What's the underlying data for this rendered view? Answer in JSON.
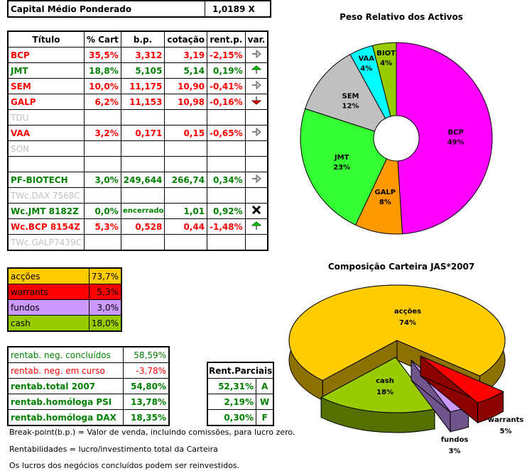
{
  "header": {
    "label": "Capital Médio Ponderado",
    "value": "1,0189 X"
  },
  "portfolio": {
    "columns": [
      "Título",
      "% Cart",
      "b.p.",
      "cotação",
      "rent.p.",
      "var."
    ],
    "rows": [
      {
        "titulo": "BCP",
        "cart": "35,5%",
        "bp": "3,312",
        "cot": "3,19",
        "rent": "-2,15%",
        "var": "arrow-right",
        "color": "red"
      },
      {
        "titulo": "JMT",
        "cart": "18,8%",
        "bp": "5,105",
        "cot": "5,14",
        "rent": "0,19%",
        "var": "arrow-up",
        "color": "green"
      },
      {
        "titulo": "SEM",
        "cart": "10,0%",
        "bp": "11,175",
        "cot": "10,90",
        "rent": "-0,41%",
        "var": "arrow-right",
        "color": "red"
      },
      {
        "titulo": "GALP",
        "cart": "6,2%",
        "bp": "11,153",
        "cot": "10,98",
        "rent": "-0,16%",
        "var": "arrow-down",
        "color": "red"
      },
      {
        "titulo": "TDU",
        "cart": "",
        "bp": "",
        "cot": "",
        "rent": "",
        "var": "",
        "color": "grey"
      },
      {
        "titulo": "VAA",
        "cart": "3,2%",
        "bp": "0,171",
        "cot": "0,15",
        "rent": "-0,65%",
        "var": "arrow-right",
        "color": "red"
      },
      {
        "titulo": "SON",
        "cart": "",
        "bp": "",
        "cot": "",
        "rent": "",
        "var": "",
        "color": "grey"
      },
      {
        "titulo": "",
        "cart": "",
        "bp": "",
        "cot": "",
        "rent": "",
        "var": "",
        "color": "grey"
      },
      {
        "titulo": "PF-BIOTECH",
        "cart": "3,0%",
        "bp": "249,644",
        "cot": "266,74",
        "rent": "0,34%",
        "var": "arrow-right",
        "color": "green"
      },
      {
        "titulo": "TWc.DAX 7568C",
        "cart": "",
        "bp": "",
        "cot": "",
        "rent": "",
        "var": "",
        "color": "grey"
      },
      {
        "titulo": "Wc.JMT 8182Z",
        "cart": "0,0%",
        "bp": "encerrado",
        "cot": "1,01",
        "rent": "0,92%",
        "var": "cross",
        "color": "green"
      },
      {
        "titulo": "Wc.BCP 8154Z",
        "cart": "5,3%",
        "bp": "0,528",
        "cot": "0,44",
        "rent": "-1,48%",
        "var": "arrow-up",
        "color": "red"
      },
      {
        "titulo": "TWc.GALP7439C",
        "cart": "",
        "bp": "",
        "cot": "",
        "rent": "",
        "var": "",
        "color": "grey"
      }
    ]
  },
  "allocation": [
    {
      "label": "acções",
      "value": "73,7%",
      "color": "#ffcc00"
    },
    {
      "label": "warrants",
      "value": "5,3%",
      "color": "#ff0000"
    },
    {
      "label": "fundos",
      "value": "3,0%",
      "color": "#cc99ff"
    },
    {
      "label": "cash",
      "value": "18,0%",
      "color": "#99cc00"
    }
  ],
  "rentab": [
    {
      "label": "rentab. neg. concluídos",
      "value": "58,59%",
      "color": "green",
      "bold": false
    },
    {
      "label": "rentab. neg. em curso",
      "value": "-3,78%",
      "color": "red",
      "bold": false
    },
    {
      "label": "rentab.total 2007",
      "value": "54,80%",
      "color": "green",
      "bold": true
    },
    {
      "label": "rentab.homóloga PSI",
      "value": "13,78%",
      "color": "green",
      "bold": true
    },
    {
      "label": "rentab.homóloga DAX",
      "value": "18,35%",
      "color": "green",
      "bold": true
    }
  ],
  "parciais": {
    "title": "Rent.Parciais",
    "rows": [
      {
        "value": "52,31%",
        "code": "A"
      },
      {
        "value": "2,19%",
        "code": "W"
      },
      {
        "value": "0,30%",
        "code": "F"
      }
    ]
  },
  "notes": [
    "Break-point(b.p.) = Valor de venda, incluindo comissões, para lucro zero.",
    "Rentabilidades = lucro/investimento total da Carteira",
    "Os lucros dos negócios concluídos podem ser reinvestidos."
  ],
  "chart_data": [
    {
      "type": "pie",
      "title": "Peso Relativo dos Activos",
      "style": "doughnut",
      "slices": [
        {
          "label": "BCP",
          "value": 49,
          "text": "49%",
          "color": "#ff00ff"
        },
        {
          "label": "GALP",
          "value": 8,
          "text": "8%",
          "color": "#ff9900"
        },
        {
          "label": "JMT",
          "value": 23,
          "text": "23%",
          "color": "#33ff33"
        },
        {
          "label": "SEM",
          "value": 12,
          "text": "12%",
          "color": "#c0c0c0"
        },
        {
          "label": "VAA",
          "value": 4,
          "text": "4%",
          "color": "#00ffff"
        },
        {
          "label": "BIOT",
          "value": 4,
          "text": "4%",
          "color": "#99cc00"
        }
      ]
    },
    {
      "type": "pie",
      "title": "Composição Carteira JAS*2007",
      "style": "3d-exploded",
      "slices": [
        {
          "label": "acções",
          "value": 74,
          "text": "74%",
          "color": "#ffcc00"
        },
        {
          "label": "warrants",
          "value": 5,
          "text": "5%",
          "color": "#ff0000"
        },
        {
          "label": "fundos",
          "value": 3,
          "text": "3%",
          "color": "#cc99ff"
        },
        {
          "label": "cash",
          "value": 18,
          "text": "18%",
          "color": "#99cc00"
        }
      ]
    }
  ]
}
